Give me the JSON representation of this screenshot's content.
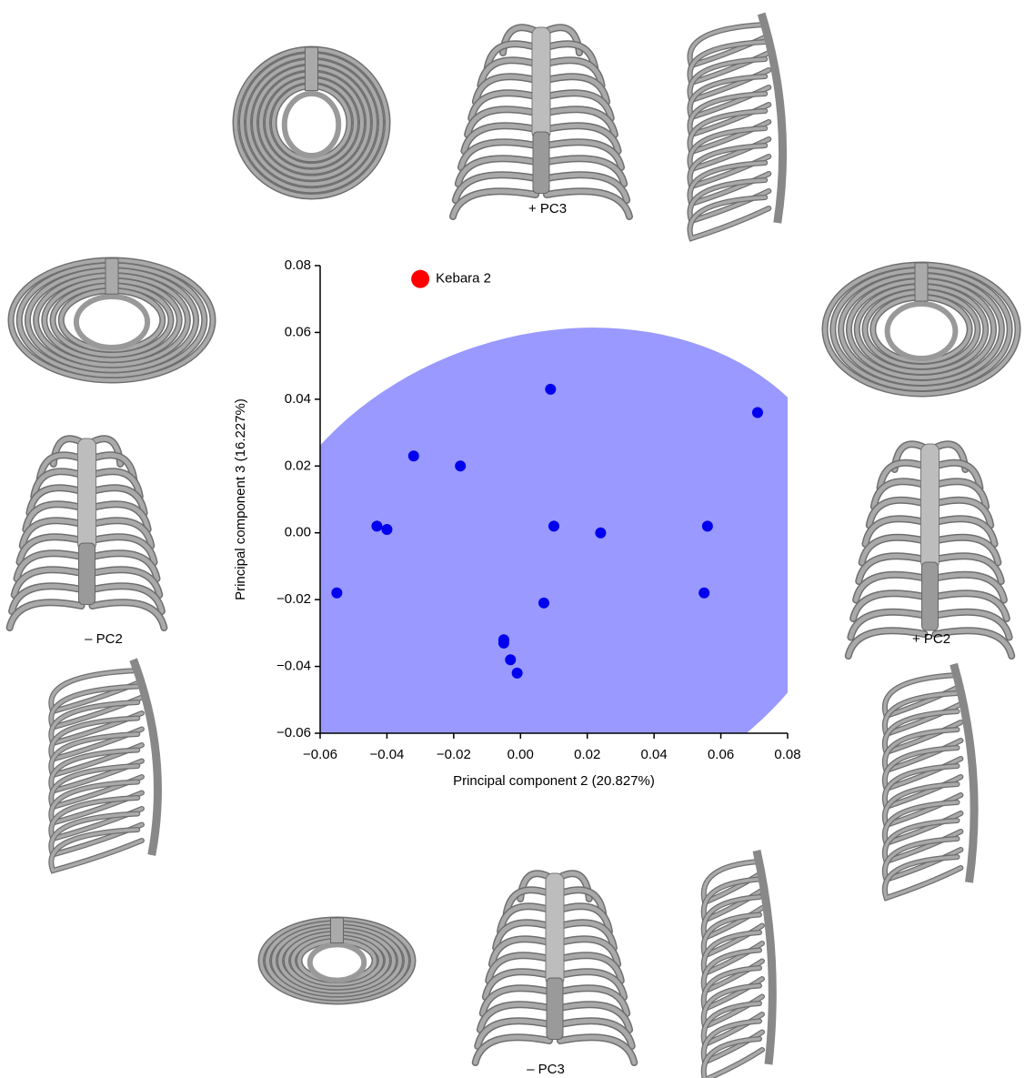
{
  "chart_data": {
    "type": "scatter",
    "xlabel": "Principal component 2 (20.827%)",
    "ylabel": "Principal component 3 (16.227%)",
    "series": [
      {
        "name": "Kebara 2",
        "color": "#ff0000",
        "x": [
          -0.03
        ],
        "values": [
          0.076
        ]
      },
      {
        "color": "#0000ee",
        "x": [
          0.009,
          0.071,
          -0.032,
          -0.018,
          -0.043,
          -0.04,
          0.01,
          0.024,
          0.056,
          -0.055,
          0.007,
          0.055,
          -0.005,
          -0.005,
          -0.003,
          -0.001
        ],
        "values": [
          0.043,
          0.036,
          0.023,
          0.02,
          0.002,
          0.001,
          0.002,
          0.0,
          0.002,
          -0.018,
          -0.021,
          -0.018,
          -0.032,
          -0.033,
          -0.038,
          -0.042
        ]
      }
    ],
    "xlim": [
      -0.06,
      0.08
    ],
    "ylim": [
      -0.06,
      0.08
    ],
    "xticks": [
      {
        "value": -0.06,
        "label": "−0.06"
      },
      {
        "value": -0.04,
        "label": "−0.04"
      },
      {
        "value": -0.02,
        "label": "−0.02"
      },
      {
        "value": 0,
        "label": "0.00"
      },
      {
        "value": 0.02,
        "label": "0.02"
      },
      {
        "value": 0.04,
        "label": "0.04"
      },
      {
        "value": 0.06,
        "label": "0.06"
      },
      {
        "value": 0.08,
        "label": "0.08"
      }
    ],
    "yticks": [
      {
        "value": -0.06,
        "label": "−0.06"
      },
      {
        "value": -0.04,
        "label": "−0.04"
      },
      {
        "value": -0.02,
        "label": "−0.02"
      },
      {
        "value": 0,
        "label": "0.00"
      },
      {
        "value": 0.02,
        "label": "0.02"
      },
      {
        "value": 0.04,
        "label": "0.04"
      },
      {
        "value": 0.06,
        "label": "0.06"
      },
      {
        "value": 0.08,
        "label": "0.08"
      }
    ],
    "annotations": [
      "+ PC3",
      "– PC2",
      "+ PC2",
      "– PC3"
    ]
  }
}
